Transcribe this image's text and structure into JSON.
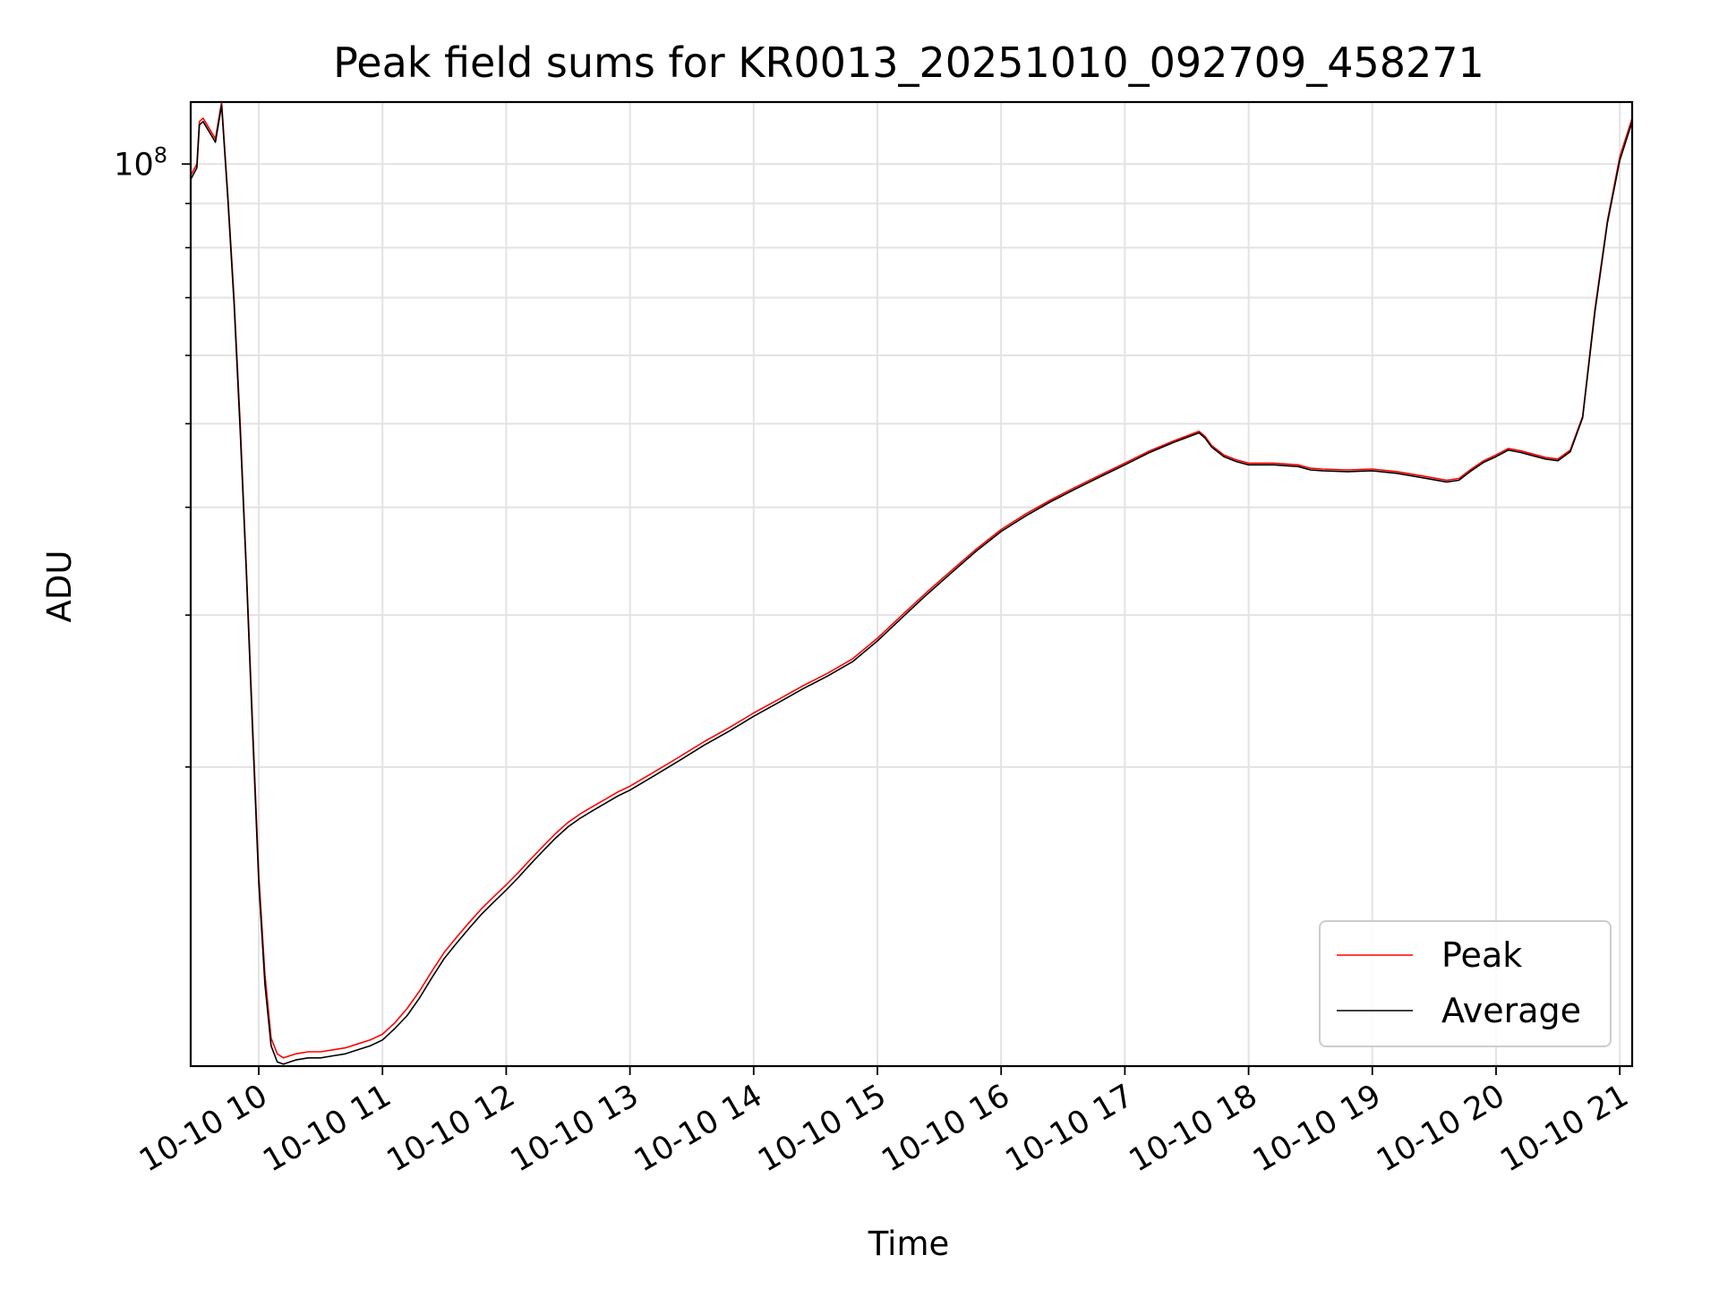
{
  "chart_data": {
    "type": "line",
    "title": "Peak field sums for KR0013_20251010_092709_458271",
    "xlabel": "Time",
    "ylabel": "ADU",
    "yscale": "log",
    "ylim": [
      9000000,
      118000000
    ],
    "xlim": [
      9.45,
      21.1
    ],
    "x_ticks": [
      {
        "value": 10,
        "label": "10-10 10"
      },
      {
        "value": 11,
        "label": "10-10 11"
      },
      {
        "value": 12,
        "label": "10-10 12"
      },
      {
        "value": 13,
        "label": "10-10 13"
      },
      {
        "value": 14,
        "label": "10-10 14"
      },
      {
        "value": 15,
        "label": "10-10 15"
      },
      {
        "value": 16,
        "label": "10-10 16"
      },
      {
        "value": 17,
        "label": "10-10 17"
      },
      {
        "value": 18,
        "label": "10-10 18"
      },
      {
        "value": 19,
        "label": "10-10 19"
      },
      {
        "value": 20,
        "label": "10-10 20"
      },
      {
        "value": 21,
        "label": "10-10 21"
      }
    ],
    "y_major_ticks": [
      {
        "value": 100000000,
        "base": "10",
        "exp": "8"
      }
    ],
    "y_minor_ticks": [
      20000000,
      30000000,
      40000000,
      50000000,
      60000000,
      70000000,
      80000000,
      90000000
    ],
    "grid": true,
    "legend_position": "bottom-right",
    "series": [
      {
        "name": "Peak",
        "color": "#ff0000",
        "x": [
          9.45,
          9.5,
          9.52,
          9.55,
          9.6,
          9.65,
          9.7,
          9.75,
          9.8,
          9.85,
          9.9,
          9.95,
          10.0,
          10.05,
          10.1,
          10.15,
          10.2,
          10.25,
          10.3,
          10.4,
          10.5,
          10.6,
          10.7,
          10.8,
          10.9,
          11.0,
          11.1,
          11.2,
          11.3,
          11.4,
          11.5,
          11.6,
          11.7,
          11.8,
          11.9,
          12.0,
          12.1,
          12.2,
          12.3,
          12.4,
          12.5,
          12.6,
          12.7,
          12.8,
          12.9,
          13.0,
          13.2,
          13.4,
          13.6,
          13.8,
          14.0,
          14.2,
          14.4,
          14.6,
          14.8,
          15.0,
          15.2,
          15.4,
          15.6,
          15.8,
          16.0,
          16.2,
          16.4,
          16.6,
          16.8,
          17.0,
          17.2,
          17.4,
          17.5,
          17.6,
          17.65,
          17.7,
          17.8,
          17.9,
          18.0,
          18.2,
          18.4,
          18.5,
          18.6,
          18.8,
          19.0,
          19.2,
          19.4,
          19.6,
          19.7,
          19.8,
          19.9,
          20.0,
          20.1,
          20.2,
          20.3,
          20.4,
          20.5,
          20.6,
          20.7,
          20.8,
          20.9,
          21.0,
          21.1
        ],
        "values": [
          97000000,
          100000000,
          112000000,
          113000000,
          110000000,
          107000000,
          118000000,
          92000000,
          70000000,
          50000000,
          34000000,
          22500000,
          15000000,
          11500000,
          9700000,
          9300000,
          9200000,
          9250000,
          9300000,
          9350000,
          9350000,
          9400000,
          9450000,
          9550000,
          9650000,
          9800000,
          10100000,
          10500000,
          11000000,
          11600000,
          12200000,
          12700000,
          13200000,
          13700000,
          14150000,
          14600000,
          15100000,
          15650000,
          16200000,
          16750000,
          17250000,
          17650000,
          18000000,
          18350000,
          18700000,
          19000000,
          19750000,
          20550000,
          21400000,
          22200000,
          23100000,
          23950000,
          24850000,
          25700000,
          26700000,
          28200000,
          30000000,
          31900000,
          33800000,
          35800000,
          37700000,
          39300000,
          40800000,
          42200000,
          43600000,
          45000000,
          46500000,
          47800000,
          48400000,
          49000000,
          48300000,
          47200000,
          46000000,
          45400000,
          45000000,
          45000000,
          44800000,
          44400000,
          44300000,
          44200000,
          44300000,
          44000000,
          43500000,
          43000000,
          43200000,
          44300000,
          45300000,
          46000000,
          46800000,
          46500000,
          46100000,
          45700000,
          45500000,
          46600000,
          51000000,
          68000000,
          86000000,
          102000000,
          113000000
        ]
      },
      {
        "name": "Average",
        "color": "#000000",
        "x": [
          9.45,
          9.5,
          9.52,
          9.55,
          9.6,
          9.65,
          9.7,
          9.75,
          9.8,
          9.85,
          9.9,
          9.95,
          10.0,
          10.05,
          10.1,
          10.15,
          10.2,
          10.25,
          10.3,
          10.4,
          10.5,
          10.6,
          10.7,
          10.8,
          10.9,
          11.0,
          11.1,
          11.2,
          11.3,
          11.4,
          11.5,
          11.6,
          11.7,
          11.8,
          11.9,
          12.0,
          12.1,
          12.2,
          12.3,
          12.4,
          12.5,
          12.6,
          12.7,
          12.8,
          12.9,
          13.0,
          13.2,
          13.4,
          13.6,
          13.8,
          14.0,
          14.2,
          14.4,
          14.6,
          14.8,
          15.0,
          15.2,
          15.4,
          15.6,
          15.8,
          16.0,
          16.2,
          16.4,
          16.6,
          16.8,
          17.0,
          17.2,
          17.4,
          17.5,
          17.6,
          17.65,
          17.7,
          17.8,
          17.9,
          18.0,
          18.2,
          18.4,
          18.5,
          18.6,
          18.8,
          19.0,
          19.2,
          19.4,
          19.6,
          19.7,
          19.8,
          19.9,
          20.0,
          20.1,
          20.2,
          20.3,
          20.4,
          20.5,
          20.6,
          20.7,
          20.8,
          20.9,
          21.0,
          21.1
        ],
        "values": [
          96000000,
          99000000,
          111000000,
          112000000,
          109000000,
          106000000,
          117000000,
          91000000,
          69000000,
          49000000,
          33500000,
          22000000,
          14700000,
          11200000,
          9500000,
          9100000,
          9050000,
          9100000,
          9150000,
          9200000,
          9200000,
          9250000,
          9300000,
          9400000,
          9500000,
          9650000,
          9950000,
          10300000,
          10800000,
          11400000,
          12000000,
          12500000,
          13000000,
          13500000,
          13950000,
          14400000,
          14900000,
          15450000,
          16000000,
          16550000,
          17050000,
          17450000,
          17800000,
          18150000,
          18500000,
          18800000,
          19550000,
          20350000,
          21200000,
          22000000,
          22900000,
          23750000,
          24650000,
          25500000,
          26500000,
          28000000,
          29800000,
          31700000,
          33600000,
          35600000,
          37500000,
          39100000,
          40600000,
          42000000,
          43400000,
          44800000,
          46300000,
          47600000,
          48200000,
          48800000,
          48100000,
          47000000,
          45800000,
          45200000,
          44800000,
          44800000,
          44600000,
          44200000,
          44100000,
          44000000,
          44100000,
          43800000,
          43300000,
          42800000,
          43000000,
          44100000,
          45100000,
          45800000,
          46600000,
          46300000,
          45900000,
          45500000,
          45300000,
          46400000,
          50800000,
          67500000,
          85500000,
          101000000,
          112000000
        ]
      }
    ]
  }
}
